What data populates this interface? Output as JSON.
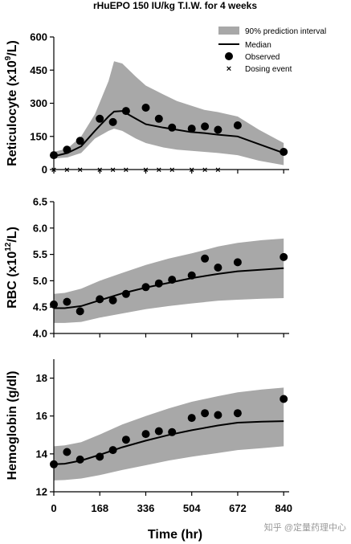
{
  "chart_data": {
    "type": "line",
    "title": "rHuEPO 150 IU/kg T.I.W. for 4 weeks",
    "xlabel": "Time (hr)",
    "xlim": [
      0,
      860
    ],
    "xticks": [
      0,
      168,
      336,
      504,
      672,
      840
    ],
    "legend": {
      "placement": "top-right",
      "entries": [
        "90% prediction interval",
        "Median",
        "Observed",
        "Dosing event"
      ]
    },
    "colors": {
      "band": "#a8a8a8",
      "line": "#000000",
      "points": "#000000"
    },
    "panels": [
      {
        "name": "reticulocyte",
        "ylabel_main": "Reticulocyte (x10",
        "ylabel_sup": "9",
        "ylabel_end": "/L)",
        "ylim": [
          0,
          600
        ],
        "yticks": [
          0,
          150,
          300,
          450,
          600
        ],
        "ytick_labels": [
          "0",
          "150",
          "300",
          "450",
          "600"
        ],
        "band": {
          "x": [
            0,
            50,
            100,
            150,
            200,
            220,
            250,
            300,
            336,
            400,
            450,
            500,
            550,
            600,
            672,
            750,
            840
          ],
          "lower": [
            50,
            55,
            75,
            140,
            175,
            185,
            175,
            140,
            120,
            100,
            90,
            85,
            80,
            75,
            65,
            40,
            20
          ],
          "upper": [
            80,
            95,
            150,
            250,
            400,
            490,
            480,
            420,
            380,
            340,
            310,
            290,
            270,
            260,
            240,
            180,
            120
          ]
        },
        "median": {
          "x": [
            0,
            50,
            100,
            150,
            200,
            220,
            250,
            300,
            336,
            400,
            450,
            500,
            550,
            600,
            672,
            750,
            840
          ],
          "y": [
            60,
            75,
            105,
            175,
            240,
            262,
            265,
            230,
            205,
            190,
            180,
            170,
            165,
            158,
            150,
            115,
            75
          ]
        },
        "observed": {
          "x": [
            0,
            48,
            96,
            168,
            216,
            264,
            336,
            384,
            432,
            504,
            552,
            600,
            672,
            840
          ],
          "y": [
            65,
            90,
            130,
            230,
            215,
            265,
            280,
            230,
            190,
            185,
            195,
            180,
            200,
            80
          ]
        },
        "dosing": [
          0,
          48,
          96,
          168,
          216,
          264,
          336,
          384,
          432,
          504,
          552,
          600
        ]
      },
      {
        "name": "rbc",
        "ylabel_main": "RBC (x10",
        "ylabel_sup": "12",
        "ylabel_end": "/L)",
        "ylim": [
          4.0,
          6.5
        ],
        "yticks": [
          4.0,
          4.5,
          5.0,
          5.5,
          6.0,
          6.5
        ],
        "ytick_labels": [
          "4.0",
          "4.5",
          "5.0",
          "5.5",
          "6.0",
          "6.5"
        ],
        "band": {
          "x": [
            0,
            40,
            100,
            168,
            250,
            336,
            420,
            504,
            600,
            672,
            760,
            840
          ],
          "lower": [
            4.2,
            4.2,
            4.22,
            4.3,
            4.38,
            4.46,
            4.52,
            4.57,
            4.62,
            4.64,
            4.66,
            4.67
          ],
          "upper": [
            4.75,
            4.77,
            4.85,
            5.0,
            5.15,
            5.3,
            5.42,
            5.52,
            5.65,
            5.72,
            5.77,
            5.8
          ]
        },
        "median": {
          "x": [
            0,
            40,
            100,
            168,
            250,
            336,
            420,
            504,
            600,
            672,
            760,
            840
          ],
          "y": [
            4.48,
            4.48,
            4.52,
            4.63,
            4.76,
            4.87,
            4.96,
            5.05,
            5.13,
            5.18,
            5.21,
            5.24
          ]
        },
        "observed": {
          "x": [
            0,
            48,
            96,
            168,
            216,
            264,
            336,
            384,
            432,
            504,
            552,
            600,
            672,
            840
          ],
          "y": [
            4.55,
            4.6,
            4.42,
            4.65,
            4.63,
            4.75,
            4.88,
            4.95,
            5.02,
            5.1,
            5.42,
            5.25,
            5.35,
            5.45
          ]
        }
      },
      {
        "name": "hemoglobin",
        "ylabel_main": "Hemoglobin (g/dl)",
        "ylabel_sup": "",
        "ylabel_end": "",
        "ylim": [
          12,
          19
        ],
        "yticks": [
          12,
          14,
          16,
          18
        ],
        "ytick_labels": [
          "12",
          "14",
          "16",
          "18"
        ],
        "band": {
          "x": [
            0,
            40,
            100,
            168,
            250,
            336,
            420,
            504,
            600,
            672,
            760,
            840
          ],
          "lower": [
            12.6,
            12.62,
            12.7,
            12.88,
            13.15,
            13.4,
            13.65,
            13.85,
            14.05,
            14.2,
            14.3,
            14.4
          ],
          "upper": [
            14.4,
            14.45,
            14.62,
            15.02,
            15.55,
            16.0,
            16.4,
            16.75,
            17.05,
            17.25,
            17.4,
            17.5
          ]
        },
        "median": {
          "x": [
            0,
            40,
            100,
            168,
            250,
            336,
            420,
            504,
            600,
            672,
            760,
            840
          ],
          "y": [
            13.45,
            13.48,
            13.65,
            13.95,
            14.35,
            14.7,
            15.0,
            15.25,
            15.5,
            15.65,
            15.7,
            15.73
          ]
        },
        "observed": {
          "x": [
            0,
            48,
            96,
            168,
            216,
            264,
            336,
            384,
            432,
            504,
            552,
            600,
            672,
            840
          ],
          "y": [
            13.45,
            14.1,
            13.7,
            13.85,
            14.2,
            14.75,
            15.05,
            15.2,
            15.15,
            15.9,
            16.15,
            16.05,
            16.15,
            16.9
          ]
        }
      }
    ]
  },
  "watermark": "知乎 @定量药理中心"
}
